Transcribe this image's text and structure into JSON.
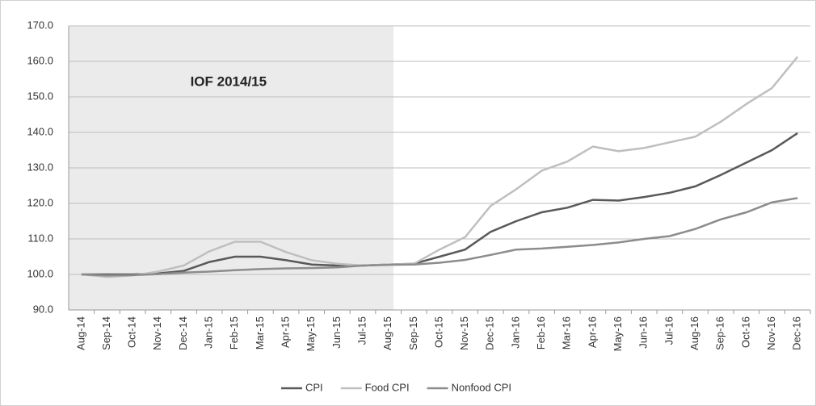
{
  "chart_data": {
    "type": "line",
    "annotation": "IOF 2014/15",
    "shaded_categories": {
      "from": 0,
      "to": 12
    },
    "categories": [
      "Aug-14",
      "Sep-14",
      "Oct-14",
      "Nov-14",
      "Dec-14",
      "Jan-15",
      "Feb-15",
      "Mar-15",
      "Apr-15",
      "May-15",
      "Jun-15",
      "Jul-15",
      "Aug-15",
      "Sep-15",
      "Oct-15",
      "Nov-15",
      "Dec-15",
      "Jan-16",
      "Feb-16",
      "Mar-16",
      "Apr-16",
      "May-16",
      "Jun-16",
      "Jul-16",
      "Aug-16",
      "Sep-16",
      "Oct-16",
      "Nov-16",
      "Dec-16"
    ],
    "series": [
      {
        "name": "CPI",
        "color": "#595959",
        "values": [
          100,
          100,
          100,
          100.3,
          101,
          103.5,
          105,
          105,
          104,
          102.8,
          102.5,
          102.5,
          102.8,
          103,
          105,
          107,
          112,
          115,
          117.5,
          118.8,
          121,
          120.8,
          121.8,
          123,
          124.8,
          128,
          131.5,
          135,
          139.8
        ]
      },
      {
        "name": "Food CPI",
        "color": "#bfbfbf",
        "values": [
          100,
          99.3,
          99.7,
          100.8,
          102.5,
          106.5,
          109.2,
          109.2,
          106.3,
          104,
          103,
          102.5,
          102.8,
          103,
          107,
          110.5,
          119.3,
          124,
          129.2,
          131.8,
          136,
          134.7,
          135.6,
          137.2,
          138.8,
          143,
          148,
          152.5,
          161.3
        ]
      },
      {
        "name": "Nonfood CPI",
        "color": "#8c8c8c",
        "values": [
          100,
          99.7,
          99.8,
          100.1,
          100.5,
          100.8,
          101.2,
          101.5,
          101.7,
          101.8,
          102,
          102.5,
          102.7,
          102.8,
          103.3,
          104.1,
          105.5,
          107,
          107.3,
          107.8,
          108.3,
          109,
          110,
          110.8,
          112.8,
          115.5,
          117.5,
          120.3,
          121.5
        ]
      }
    ],
    "ylim": [
      90,
      170
    ],
    "yticks": [
      {
        "value": 90,
        "label": "90.0"
      },
      {
        "value": 100,
        "label": "100.0"
      },
      {
        "value": 110,
        "label": "110.0"
      },
      {
        "value": 120,
        "label": "120.0"
      },
      {
        "value": 130,
        "label": "130.0"
      },
      {
        "value": 140,
        "label": "140.0"
      },
      {
        "value": 150,
        "label": "150.0"
      },
      {
        "value": 160,
        "label": "160.0"
      },
      {
        "value": 170,
        "label": "170.0"
      }
    ],
    "grid": true,
    "legend": "bottom"
  }
}
